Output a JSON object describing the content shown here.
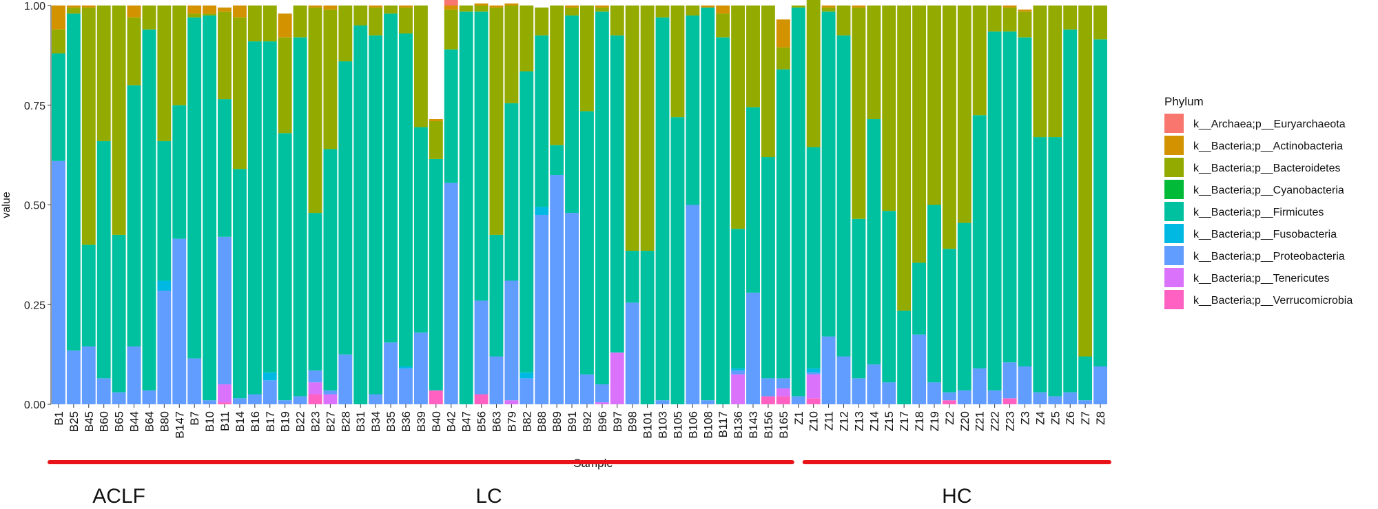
{
  "chart_data": {
    "type": "bar",
    "stacked": true,
    "xlabel": "Sample",
    "ylabel": "value",
    "ylim": [
      0,
      1
    ],
    "y_ticks": [
      "0.00",
      "0.25",
      "0.50",
      "0.75",
      "1.00"
    ],
    "categories": [
      "B1",
      "B25",
      "B45",
      "B60",
      "B65",
      "B44",
      "B64",
      "B80",
      "B147",
      "B7",
      "B10",
      "B11",
      "B14",
      "B16",
      "B17",
      "B19",
      "B22",
      "B23",
      "B27",
      "B28",
      "B31",
      "B34",
      "B35",
      "B36",
      "B39",
      "B40",
      "B42",
      "B47",
      "B56",
      "B63",
      "B79",
      "B82",
      "B88",
      "B89",
      "B91",
      "B92",
      "B96",
      "B97",
      "B98",
      "B101",
      "B103",
      "B105",
      "B106",
      "B108",
      "B117",
      "B136",
      "B143",
      "B156",
      "B165",
      "Z1",
      "Z10",
      "Z11",
      "Z12",
      "Z13",
      "Z14",
      "Z15",
      "Z17",
      "Z18",
      "Z19",
      "Z2",
      "Z20",
      "Z21",
      "Z22",
      "Z23",
      "Z3",
      "Z4",
      "Z5",
      "Z6",
      "Z7",
      "Z8"
    ],
    "legend_title": "Phylum",
    "legend_position": "right",
    "series": [
      {
        "name": "k__Archaea;p__Euryarchaeota",
        "color": "#F8766D",
        "values": [
          0,
          0,
          0,
          0,
          0,
          0,
          0,
          0,
          0,
          0,
          0,
          0,
          0,
          0,
          0,
          0,
          0,
          0,
          0,
          0,
          0,
          0,
          0,
          0,
          0,
          0,
          0.015,
          0,
          0,
          0,
          0,
          0,
          0,
          0,
          0,
          0,
          0,
          0,
          0,
          0,
          0,
          0,
          0,
          0,
          0,
          0,
          0,
          0,
          0,
          0,
          0,
          0,
          0,
          0,
          0,
          0,
          0,
          0,
          0,
          0,
          0,
          0,
          0,
          0,
          0,
          0,
          0,
          0,
          0,
          0
        ]
      },
      {
        "name": "k__Bacteria;p__Actinobacteria",
        "color": "#D39200",
        "values": [
          0.06,
          0.005,
          0.005,
          0,
          0,
          0.03,
          0,
          0,
          0,
          0.02,
          0.02,
          0.01,
          0.03,
          0,
          0,
          0.06,
          0,
          0.005,
          0.01,
          0,
          0,
          0.005,
          0,
          0.005,
          0,
          0.005,
          0.01,
          0,
          0.005,
          0.005,
          0.005,
          0,
          0,
          0,
          0.005,
          0,
          0.005,
          0,
          0,
          0,
          0,
          0,
          0,
          0.005,
          0.02,
          0,
          0,
          0,
          0.07,
          0,
          0,
          0.005,
          0,
          0.005,
          0,
          0,
          0,
          0,
          0,
          0,
          0,
          0,
          0,
          0.005,
          0.005,
          0,
          0,
          0,
          0,
          0
        ]
      },
      {
        "name": "k__Bacteria;p__Bacteroidetes",
        "color": "#93AA00",
        "values": [
          0.06,
          0.015,
          0.595,
          0.34,
          0.575,
          0.17,
          0.06,
          0.34,
          0.25,
          0.01,
          0.005,
          0.22,
          0.38,
          0.09,
          0.09,
          0.24,
          0.08,
          0.515,
          0.35,
          0.14,
          0.05,
          0.07,
          0.02,
          0.065,
          0.305,
          0.095,
          0.1,
          0.015,
          0.015,
          0.57,
          0.245,
          0.165,
          0.07,
          0.35,
          0.02,
          0.265,
          0.01,
          0.075,
          0.615,
          0.615,
          0.03,
          0.28,
          0.025,
          0,
          0.06,
          0.56,
          0.255,
          0.38,
          0.055,
          0.005,
          0.37,
          0.01,
          0.075,
          0.53,
          0.285,
          0.515,
          0.765,
          0.645,
          0.5,
          0.61,
          0.545,
          0.275,
          0.065,
          0.06,
          0.065,
          0.33,
          0.33,
          0.06,
          0.88,
          0.085
        ]
      },
      {
        "name": "k__Bacteria;p__Cyanobacteria",
        "color": "#00BA38",
        "values": [
          0,
          0,
          0,
          0,
          0,
          0,
          0,
          0,
          0,
          0,
          0,
          0,
          0,
          0,
          0,
          0,
          0,
          0,
          0,
          0,
          0,
          0,
          0,
          0,
          0,
          0,
          0,
          0,
          0,
          0,
          0,
          0,
          0,
          0,
          0,
          0,
          0,
          0,
          0,
          0,
          0,
          0,
          0,
          0,
          0,
          0,
          0,
          0,
          0,
          0,
          0,
          0,
          0,
          0,
          0,
          0,
          0,
          0,
          0,
          0,
          0,
          0,
          0,
          0,
          0,
          0,
          0,
          0,
          0,
          0
        ]
      },
      {
        "name": "k__Bacteria;p__Firmicutes",
        "color": "#00C19F",
        "values": [
          0.27,
          0.845,
          0.255,
          0.595,
          0.395,
          0.655,
          0.905,
          0.35,
          0.335,
          0.855,
          0.965,
          0.345,
          0.575,
          0.885,
          0.83,
          0.67,
          0.9,
          0.395,
          0.605,
          0.735,
          0.95,
          0.9,
          0.825,
          0.835,
          0.515,
          0.58,
          0.335,
          0.985,
          0.725,
          0.305,
          0.445,
          0.755,
          0.43,
          0.075,
          0.495,
          0.66,
          0.935,
          0.795,
          0.13,
          0.385,
          0.96,
          0.72,
          0.475,
          0.985,
          0.92,
          0.35,
          0.465,
          0.555,
          0.775,
          0.975,
          0.555,
          0.815,
          0.805,
          0.4,
          0.615,
          0.43,
          0.235,
          0.18,
          0.445,
          0.36,
          0.42,
          0.635,
          0.9,
          0.83,
          0.825,
          0.64,
          0.65,
          0.91,
          0.11,
          0.82
        ]
      },
      {
        "name": "k__Bacteria;p__Fusobacteria",
        "color": "#00B9E3",
        "values": [
          0,
          0,
          0,
          0,
          0,
          0,
          0,
          0.025,
          0,
          0,
          0,
          0,
          0,
          0,
          0.02,
          0,
          0,
          0,
          0,
          0,
          0,
          0,
          0,
          0.005,
          0,
          0,
          0,
          0,
          0,
          0,
          0,
          0.015,
          0.02,
          0,
          0,
          0,
          0,
          0,
          0,
          0,
          0,
          0,
          0,
          0,
          0,
          0.005,
          0,
          0,
          0,
          0,
          0.01,
          0,
          0,
          0,
          0,
          0,
          0,
          0,
          0,
          0,
          0,
          0,
          0,
          0,
          0,
          0,
          0,
          0,
          0,
          0
        ]
      },
      {
        "name": "k__Bacteria;p__Proteobacteria",
        "color": "#619CFF",
        "values": [
          0.61,
          0.135,
          0.145,
          0.065,
          0.03,
          0.145,
          0.035,
          0.285,
          0.415,
          0.115,
          0.01,
          0.37,
          0.015,
          0.025,
          0.06,
          0.01,
          0.02,
          0.03,
          0.01,
          0.125,
          0,
          0.025,
          0.155,
          0.09,
          0.18,
          0,
          0.555,
          0,
          0.235,
          0.12,
          0.3,
          0.065,
          0.475,
          0.575,
          0.48,
          0.075,
          0.045,
          0,
          0.255,
          0,
          0.01,
          0,
          0.5,
          0.01,
          0,
          0.01,
          0.28,
          0.045,
          0.025,
          0.02,
          0.005,
          0.17,
          0.12,
          0.065,
          0.1,
          0.055,
          0,
          0.175,
          0.055,
          0.02,
          0.035,
          0.09,
          0.035,
          0.09,
          0.095,
          0.03,
          0.02,
          0.03,
          0.01,
          0.095
        ]
      },
      {
        "name": "k__Bacteria;p__Tenericutes",
        "color": "#DB72FB",
        "values": [
          0,
          0,
          0,
          0,
          0,
          0,
          0,
          0,
          0,
          0,
          0,
          0.045,
          0,
          0,
          0,
          0,
          0,
          0.03,
          0.025,
          0,
          0,
          0,
          0,
          0,
          0,
          0,
          0,
          0,
          0,
          0,
          0.01,
          0,
          0,
          0,
          0,
          0,
          0.005,
          0.13,
          0,
          0,
          0,
          0,
          0,
          0,
          0,
          0.075,
          0,
          0,
          0.02,
          0,
          0.06,
          0,
          0,
          0,
          0,
          0,
          0,
          0,
          0,
          0,
          0,
          0,
          0,
          0,
          0,
          0,
          0,
          0,
          0,
          0
        ]
      },
      {
        "name": "k__Bacteria;p__Verrucomicrobia",
        "color": "#FF61C3",
        "values": [
          0,
          0,
          0,
          0,
          0,
          0,
          0,
          0,
          0,
          0,
          0,
          0.005,
          0,
          0,
          0,
          0,
          0,
          0.025,
          0,
          0,
          0,
          0,
          0,
          0,
          0,
          0.035,
          0,
          0,
          0.025,
          0,
          0,
          0,
          0,
          0,
          0,
          0,
          0,
          0,
          0,
          0,
          0,
          0,
          0,
          0,
          0,
          0,
          0,
          0.02,
          0.02,
          0,
          0.015,
          0,
          0,
          0,
          0,
          0,
          0,
          0,
          0,
          0.01,
          0,
          0,
          0,
          0.015,
          0,
          0,
          0,
          0,
          0,
          0
        ]
      }
    ]
  },
  "groups": [
    {
      "label": "ACLF",
      "first": "B1",
      "last": "B147"
    },
    {
      "label": "LC",
      "first": "B7",
      "last": "B165"
    },
    {
      "label": "HC",
      "first": "Z10",
      "last": "Z8"
    }
  ]
}
